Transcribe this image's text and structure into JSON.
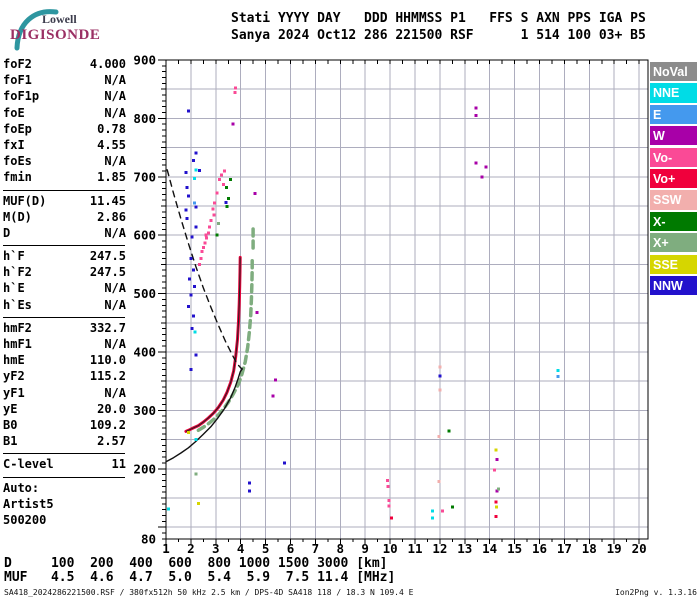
{
  "logo": {
    "line1": "Lowell",
    "line2": "DIGISONDE"
  },
  "header": {
    "line1": "Stati YYYY DAY   DDD HHMMSS P1   FFS S AXN PPS IGA PS",
    "line2": "Sanya 2024 Oct12 286 221500 RSF      1 514 100 03+ B5"
  },
  "params": {
    "rows": [
      {
        "label": "foF2",
        "value": "4.000"
      },
      {
        "label": "foF1",
        "value": "N/A"
      },
      {
        "label": "foF1p",
        "value": "N/A"
      },
      {
        "label": "foE",
        "value": "N/A"
      },
      {
        "label": "foEp",
        "value": "0.78"
      },
      {
        "label": "fxI",
        "value": "4.55"
      },
      {
        "label": "foEs",
        "value": "N/A"
      },
      {
        "label": "fmin",
        "value": "1.85"
      },
      {
        "divider": true
      },
      {
        "label": "MUF(D)",
        "value": "11.45"
      },
      {
        "label": "M(D)",
        "value": "2.86"
      },
      {
        "label": "D",
        "value": "N/A"
      },
      {
        "divider": true
      },
      {
        "label": "h`F",
        "value": "247.5"
      },
      {
        "label": "h`F2",
        "value": "247.5"
      },
      {
        "label": "h`E",
        "value": "N/A"
      },
      {
        "label": "h`Es",
        "value": "N/A"
      },
      {
        "divider": true
      },
      {
        "label": "hmF2",
        "value": "332.7"
      },
      {
        "label": "hmF1",
        "value": "N/A"
      },
      {
        "label": "hmE",
        "value": "110.0"
      },
      {
        "label": "yF2",
        "value": "115.2"
      },
      {
        "label": "yF1",
        "value": "N/A"
      },
      {
        "label": "yE",
        "value": "20.0"
      },
      {
        "label": "B0",
        "value": "109.2"
      },
      {
        "label": "B1",
        "value": "2.57"
      },
      {
        "divider": true
      },
      {
        "label": "C-level",
        "value": "11"
      },
      {
        "divider": true
      },
      {
        "label": "Auto:",
        "value": ""
      },
      {
        "label": "Artist5",
        "value": ""
      },
      {
        "label": "500200",
        "value": ""
      }
    ]
  },
  "legend": {
    "items": [
      {
        "label": "NoVal",
        "color": "#8C8C8C"
      },
      {
        "label": "NNE",
        "color": "#00DCE6"
      },
      {
        "label": "E",
        "color": "#4499EE"
      },
      {
        "label": "W",
        "color": "#A800A8"
      },
      {
        "label": "Vo-",
        "color": "#FA4A96"
      },
      {
        "label": "Vo+",
        "color": "#F0003C"
      },
      {
        "label": "SSW",
        "color": "#F2AFAD"
      },
      {
        "label": "X-",
        "color": "#007A00"
      },
      {
        "label": "X+",
        "color": "#7FAD7F"
      },
      {
        "label": "SSE",
        "color": "#D6D600"
      },
      {
        "label": "NNW",
        "color": "#2211CC"
      }
    ]
  },
  "bottom_table": {
    "line1": "D     100  200  400  600  800 1000 1500 3000 [km]",
    "line2": "MUF   4.5  4.6  4.7  5.0  5.4  5.9  7.5 11.4 [MHz]"
  },
  "footer": {
    "left": "SA418_2024286221500.RSF / 380fx512h 50 kHz 2.5 km / DPS-4D SA418 118 / 18.3 N 109.4 E",
    "right": "Ion2Png v. 1.3.16"
  },
  "chart_data": {
    "type": "scatter",
    "title": "Digisonde ionogram: virtual height [km] vs frequency [MHz]",
    "x_range": [
      1,
      20
    ],
    "y_range": [
      80,
      900
    ],
    "x_ticks": [
      1,
      2,
      3,
      4,
      5,
      6,
      7,
      8,
      9,
      10,
      11,
      12,
      13,
      14,
      15,
      16,
      17,
      18,
      19,
      20
    ],
    "y_tick_labels": [
      900,
      800,
      700,
      600,
      500,
      400,
      300,
      200,
      80
    ],
    "grid": {
      "x_step": 1,
      "y_step": 50,
      "color": "#adadbe"
    },
    "colors": {
      "NoVal": "#8C8C8C",
      "NNE": "#00DCE6",
      "E": "#4499EE",
      "W": "#A800A8",
      "Vo-": "#FA4A96",
      "Vo+": "#F0003C",
      "SSW": "#F2AFAD",
      "X-": "#007A00",
      "X+": "#7FAD7F",
      "SSE": "#D6D600",
      "NNW": "#2211CC"
    },
    "series": [
      {
        "name": "o-trace",
        "color": "#E8003A",
        "width": 3,
        "core": "#222222",
        "points": [
          [
            1.8,
            264
          ],
          [
            1.95,
            267
          ],
          [
            2.1,
            270
          ],
          [
            2.3,
            274
          ],
          [
            2.5,
            280
          ],
          [
            2.7,
            287
          ],
          [
            2.9,
            295
          ],
          [
            3.1,
            305
          ],
          [
            3.3,
            318
          ],
          [
            3.45,
            331
          ],
          [
            3.6,
            348
          ],
          [
            3.72,
            368
          ],
          [
            3.8,
            392
          ],
          [
            3.87,
            422
          ],
          [
            3.91,
            452
          ],
          [
            3.94,
            482
          ],
          [
            3.96,
            512
          ],
          [
            3.97,
            538
          ],
          [
            3.98,
            562
          ]
        ]
      },
      {
        "name": "x-trace",
        "color": "#7FAD7F",
        "width": 3.5,
        "dash": "7 5",
        "points": [
          [
            2.3,
            266
          ],
          [
            2.5,
            271
          ],
          [
            2.7,
            277
          ],
          [
            2.9,
            284
          ],
          [
            3.1,
            292
          ],
          [
            3.3,
            302
          ],
          [
            3.5,
            314
          ],
          [
            3.7,
            328
          ],
          [
            3.9,
            344
          ],
          [
            4.05,
            362
          ],
          [
            4.18,
            383
          ],
          [
            4.28,
            408
          ],
          [
            4.35,
            435
          ],
          [
            4.4,
            462
          ],
          [
            4.43,
            490
          ],
          [
            4.45,
            517
          ],
          [
            4.46,
            543
          ],
          [
            4.46,
            562
          ]
        ]
      },
      {
        "name": "x-trace-upper",
        "color": "#7FAD7F",
        "width": 3.5,
        "dash": "7 5",
        "points": [
          [
            4.5,
            578
          ],
          [
            4.5,
            612
          ]
        ]
      },
      {
        "name": "true-height-profile",
        "color": "#111111",
        "width": 1.4,
        "points": [
          [
            1.0,
            212
          ],
          [
            1.3,
            219
          ],
          [
            1.6,
            227
          ],
          [
            1.9,
            236
          ],
          [
            2.2,
            247
          ],
          [
            2.5,
            259
          ],
          [
            2.8,
            272
          ],
          [
            3.1,
            288
          ],
          [
            3.35,
            303
          ],
          [
            3.6,
            322
          ],
          [
            3.78,
            340
          ],
          [
            3.9,
            355
          ],
          [
            3.98,
            366
          ],
          [
            4.06,
            371
          ]
        ]
      },
      {
        "name": "topside-model",
        "color": "#111111",
        "width": 1.4,
        "dash": "6 5",
        "points": [
          [
            1.05,
            712
          ],
          [
            1.3,
            672
          ],
          [
            1.6,
            628
          ],
          [
            1.9,
            586
          ],
          [
            2.2,
            546
          ],
          [
            2.5,
            510
          ],
          [
            2.8,
            477
          ],
          [
            3.1,
            446
          ],
          [
            3.4,
            417
          ],
          [
            3.65,
            396
          ],
          [
            3.85,
            380
          ],
          [
            4.0,
            373
          ],
          [
            4.06,
            371
          ]
        ]
      }
    ],
    "scatter": [
      {
        "category": "NNW",
        "points": [
          [
            1.9,
            813
          ],
          [
            2.2,
            741
          ],
          [
            2.1,
            728
          ],
          [
            1.8,
            707
          ],
          [
            2.35,
            711
          ],
          [
            1.85,
            682
          ],
          [
            1.9,
            667
          ],
          [
            1.8,
            643
          ],
          [
            2.2,
            648
          ],
          [
            1.84,
            629
          ],
          [
            2.2,
            614
          ],
          [
            3.4,
            656
          ],
          [
            2.05,
            597
          ],
          [
            2.0,
            560
          ],
          [
            2.1,
            540
          ],
          [
            1.95,
            525
          ],
          [
            2.15,
            512
          ],
          [
            2.0,
            498
          ],
          [
            1.9,
            478
          ],
          [
            2.1,
            462
          ],
          [
            2.05,
            440
          ],
          [
            2.2,
            395
          ],
          [
            2.0,
            370
          ],
          [
            4.35,
            176
          ],
          [
            4.35,
            162
          ],
          [
            5.75,
            210
          ],
          [
            12.0,
            359
          ]
        ]
      },
      {
        "category": "NNE",
        "points": [
          [
            2.2,
            712
          ],
          [
            2.15,
            697
          ],
          [
            2.16,
            434
          ],
          [
            2.2,
            250
          ],
          [
            1.1,
            131
          ],
          [
            11.7,
            128
          ],
          [
            11.7,
            116
          ],
          [
            16.75,
            368
          ]
        ]
      },
      {
        "category": "E",
        "points": [
          [
            16.75,
            358
          ],
          [
            2.15,
            655
          ]
        ]
      },
      {
        "category": "Vo-",
        "points": [
          [
            3.35,
            710
          ],
          [
            3.22,
            703
          ],
          [
            3.15,
            695
          ],
          [
            3.3,
            687
          ],
          [
            3.05,
            672
          ],
          [
            2.95,
            655
          ],
          [
            2.88,
            645
          ],
          [
            2.92,
            635
          ],
          [
            2.8,
            625
          ],
          [
            2.75,
            614
          ],
          [
            2.7,
            604
          ],
          [
            2.63,
            595
          ],
          [
            2.56,
            587
          ],
          [
            2.5,
            579
          ],
          [
            2.45,
            572
          ],
          [
            2.4,
            560
          ],
          [
            2.35,
            550
          ],
          [
            2.6,
            600
          ],
          [
            9.9,
            180
          ],
          [
            9.92,
            170
          ],
          [
            9.95,
            146
          ],
          [
            9.95,
            136
          ],
          [
            12.1,
            128
          ],
          [
            14.2,
            198
          ],
          [
            3.8,
            852
          ],
          [
            3.77,
            844
          ]
        ]
      },
      {
        "category": "Vo+",
        "points": [
          [
            14.25,
            143
          ],
          [
            14.25,
            118
          ],
          [
            10.05,
            116
          ]
        ]
      },
      {
        "category": "W",
        "points": [
          [
            4.57,
            671
          ],
          [
            4.65,
            468
          ],
          [
            3.7,
            790
          ],
          [
            13.45,
            818
          ],
          [
            13.45,
            805
          ],
          [
            13.45,
            724
          ],
          [
            13.85,
            717
          ],
          [
            13.7,
            700
          ],
          [
            14.3,
            216
          ],
          [
            14.3,
            162
          ],
          [
            5.3,
            325
          ],
          [
            5.4,
            352
          ]
        ]
      },
      {
        "category": "X-",
        "points": [
          [
            3.6,
            695
          ],
          [
            3.42,
            682
          ],
          [
            3.5,
            663
          ],
          [
            3.45,
            649
          ],
          [
            3.05,
            600
          ],
          [
            12.37,
            265
          ],
          [
            12.5,
            135
          ]
        ]
      },
      {
        "category": "X+",
        "points": [
          [
            2.2,
            191
          ],
          [
            14.35,
            165
          ],
          [
            3.1,
            620
          ]
        ]
      },
      {
        "category": "SSE",
        "points": [
          [
            2.3,
            141
          ],
          [
            14.25,
            232
          ],
          [
            14.28,
            135
          ],
          [
            1.9,
            262
          ]
        ]
      },
      {
        "category": "SSW",
        "points": [
          [
            12.0,
            374
          ],
          [
            12.0,
            335
          ],
          [
            11.96,
            255
          ],
          [
            11.96,
            178
          ]
        ]
      }
    ]
  }
}
